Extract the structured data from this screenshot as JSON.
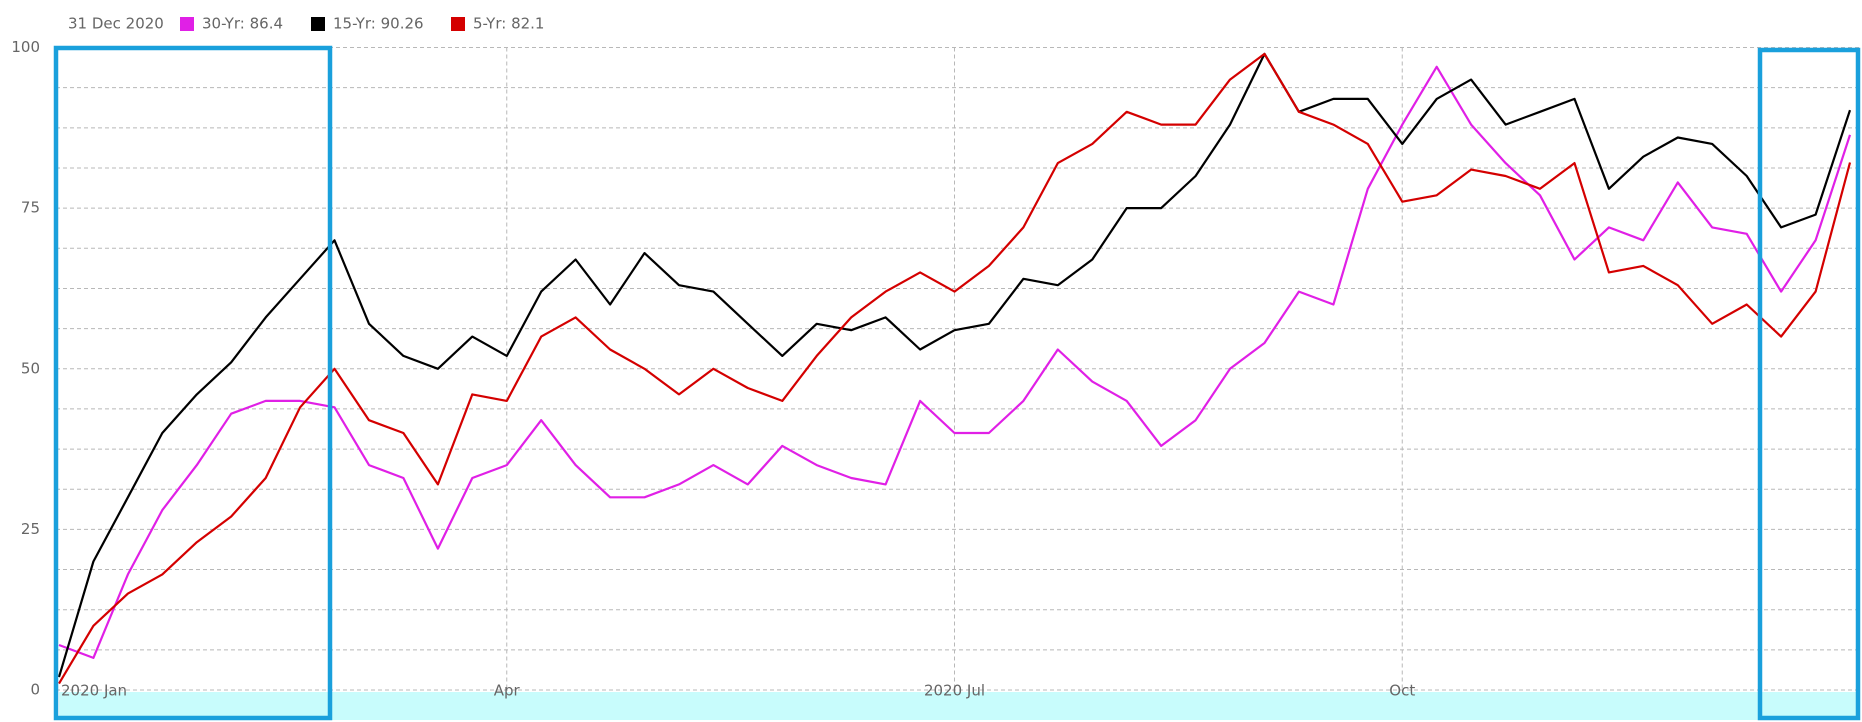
{
  "chart_data": {
    "type": "line",
    "date_label": "31 Dec 2020",
    "categories": [
      "2020 Jan",
      null,
      null,
      null,
      null,
      null,
      null,
      null,
      null,
      null,
      null,
      null,
      null,
      "Apr",
      null,
      null,
      null,
      null,
      null,
      null,
      null,
      null,
      null,
      null,
      null,
      null,
      "2020 Jul",
      null,
      null,
      null,
      null,
      null,
      null,
      null,
      null,
      null,
      null,
      null,
      null,
      "Oct",
      null,
      null,
      null,
      null,
      null,
      null,
      null,
      null,
      null,
      null,
      null,
      null,
      null
    ],
    "series": [
      {
        "name": "30-Yr: 86.4",
        "color": "#e020e6",
        "values": [
          7,
          5,
          18,
          28,
          35,
          43,
          45,
          45,
          44,
          35,
          33,
          22,
          33,
          35,
          42,
          35,
          30,
          30,
          32,
          35,
          32,
          38,
          35,
          33,
          32,
          45,
          40,
          40,
          45,
          53,
          48,
          45,
          38,
          42,
          50,
          54,
          62,
          60,
          78,
          88,
          97,
          88,
          82,
          77,
          67,
          72,
          70,
          79,
          72,
          71,
          62,
          70,
          86.4
        ]
      },
      {
        "name": "15-Yr: 90.26",
        "color": "#000000",
        "values": [
          2,
          20,
          30,
          40,
          46,
          51,
          58,
          64,
          70,
          57,
          52,
          50,
          55,
          52,
          62,
          67,
          60,
          68,
          63,
          62,
          57,
          52,
          57,
          56,
          58,
          53,
          56,
          57,
          64,
          63,
          67,
          75,
          75,
          80,
          88,
          99,
          90,
          92,
          92,
          85,
          92,
          95,
          88,
          90,
          92,
          78,
          83,
          86,
          85,
          80,
          72,
          74,
          90.26
        ]
      },
      {
        "name": "5-Yr: 82.1",
        "color": "#d40000",
        "values": [
          1,
          10,
          15,
          18,
          23,
          27,
          33,
          44,
          50,
          42,
          40,
          32,
          46,
          45,
          55,
          58,
          53,
          50,
          46,
          50,
          47,
          45,
          52,
          58,
          62,
          65,
          62,
          66,
          72,
          82,
          85,
          90,
          88,
          88,
          95,
          99,
          90,
          88,
          85,
          76,
          77,
          81,
          80,
          78,
          82,
          65,
          66,
          63,
          57,
          60,
          55,
          62,
          82.1
        ]
      }
    ],
    "ylim": [
      0,
      100
    ],
    "yticks": [
      0,
      25,
      50,
      75,
      100
    ],
    "grid": true,
    "minor_divisions": 4
  }
}
